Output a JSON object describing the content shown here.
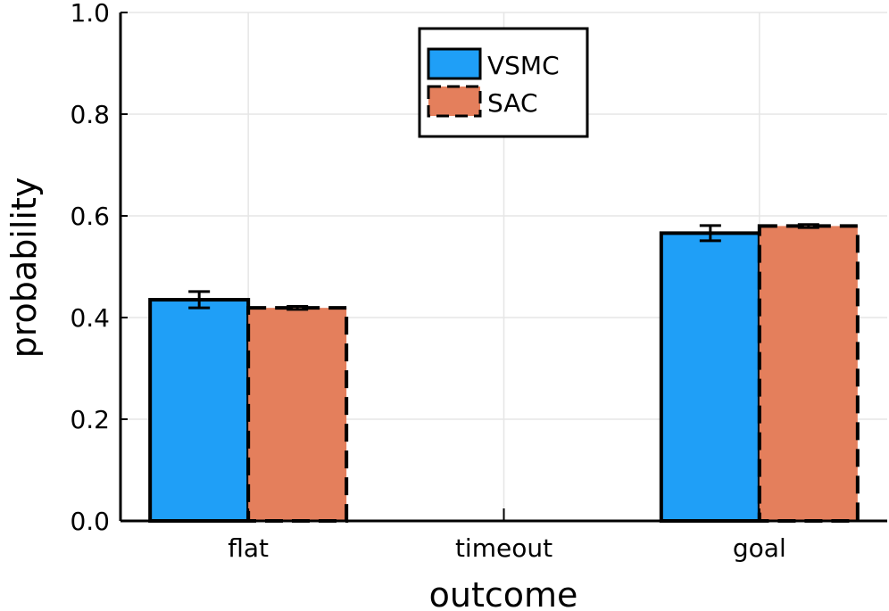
{
  "chart_data": {
    "type": "bar",
    "title": "",
    "xlabel": "outcome",
    "ylabel": "probability",
    "categories": [
      "flat",
      "timeout",
      "goal"
    ],
    "ylim": [
      0,
      1.0
    ],
    "yticks": [
      "0.0",
      "0.2",
      "0.4",
      "0.6",
      "0.8",
      "1.0"
    ],
    "grid": true,
    "legend_position": "top-center",
    "series": [
      {
        "name": "VSMC",
        "color": "#1f9ff7",
        "line_style": "solid",
        "values": [
          0.435,
          0.0,
          0.566
        ],
        "errors": [
          0.016,
          0.0,
          0.015
        ]
      },
      {
        "name": "SAC",
        "color": "#e47f5c",
        "line_style": "dashed",
        "values": [
          0.419,
          0.0,
          0.58
        ],
        "errors": [
          0.003,
          0.0,
          0.003
        ]
      }
    ]
  }
}
